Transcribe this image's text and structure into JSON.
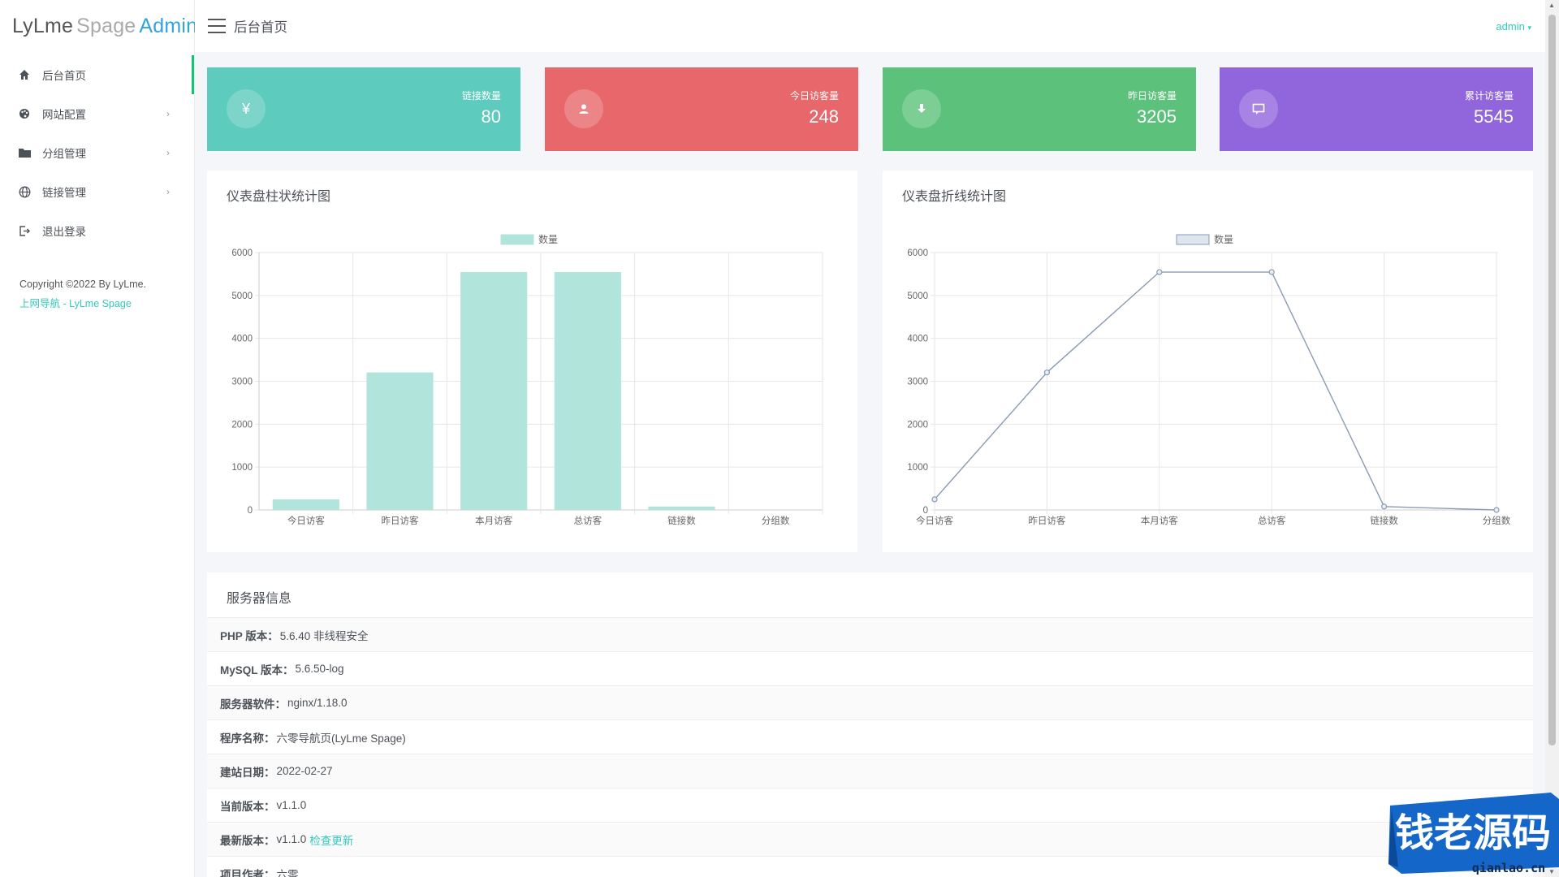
{
  "app": {
    "logo_part1": "LyLme",
    "logo_part2": "Spage",
    "logo_part3": "Admin",
    "page_title": "后台首页",
    "user": "admin"
  },
  "sidebar": {
    "items": [
      {
        "label": "后台首页",
        "icon": "home-icon",
        "active": true,
        "expandable": false
      },
      {
        "label": "网站配置",
        "icon": "palette-icon",
        "active": false,
        "expandable": true
      },
      {
        "label": "分组管理",
        "icon": "folder-icon",
        "active": false,
        "expandable": true
      },
      {
        "label": "链接管理",
        "icon": "globe-icon",
        "active": false,
        "expandable": true
      },
      {
        "label": "退出登录",
        "icon": "logout-icon",
        "active": false,
        "expandable": false
      }
    ],
    "copyright": "Copyright ©2022 By LyLme.",
    "copyright_link": "上网导航 - LyLme Spage"
  },
  "stats": [
    {
      "label": "链接数量",
      "value": "80",
      "color": "#5dcbbd",
      "icon": "yen-icon"
    },
    {
      "label": "今日访客量",
      "value": "248",
      "color": "#e8676b",
      "icon": "user-icon"
    },
    {
      "label": "昨日访客量",
      "value": "3205",
      "color": "#5cc27b",
      "icon": "download-icon"
    },
    {
      "label": "累计访客量",
      "value": "5545",
      "color": "#9166dc",
      "icon": "message-icon"
    }
  ],
  "panels": {
    "bar_title": "仪表盘柱状统计图",
    "line_title": "仪表盘折线统计图",
    "server_title": "服务器信息"
  },
  "chart_data": [
    {
      "type": "bar",
      "title": "仪表盘柱状统计图",
      "legend": "数量",
      "categories": [
        "今日访客",
        "昨日访客",
        "本月访客",
        "总访客",
        "链接数",
        "分组数"
      ],
      "values": [
        248,
        3205,
        5545,
        5545,
        80,
        0
      ],
      "ylim": [
        0,
        6000
      ],
      "yticks": [
        0,
        1000,
        2000,
        3000,
        4000,
        5000,
        6000
      ],
      "color": "#b1e4db",
      "grid": true,
      "legend_position": "top-center"
    },
    {
      "type": "line",
      "title": "仪表盘折线统计图",
      "legend": "数量",
      "categories": [
        "今日访客",
        "昨日访客",
        "本月访客",
        "总访客",
        "链接数",
        "分组数"
      ],
      "values": [
        248,
        3205,
        5545,
        5545,
        80,
        0
      ],
      "ylim": [
        0,
        6000
      ],
      "yticks": [
        0,
        1000,
        2000,
        3000,
        4000,
        5000,
        6000
      ],
      "color": "#8a9bb3",
      "grid": true,
      "legend_position": "top-center"
    }
  ],
  "server_info": [
    {
      "label": "PHP 版本：",
      "value": "5.6.40 非线程安全"
    },
    {
      "label": "MySQL 版本：",
      "value": "5.6.50-log"
    },
    {
      "label": "服务器软件：",
      "value": "nginx/1.18.0"
    },
    {
      "label": "程序名称：",
      "value": "六零导航页(LyLme Spage)"
    },
    {
      "label": "建站日期：",
      "value": "2022-02-27"
    },
    {
      "label": "当前版本：",
      "value": "v1.1.0"
    },
    {
      "label": "最新版本：",
      "value": "v1.1.0",
      "link": "检查更新"
    },
    {
      "label": "项目作者：",
      "value": "六零"
    }
  ],
  "watermark": {
    "brand": "钱老源码",
    "url": "qianlao.cn"
  }
}
